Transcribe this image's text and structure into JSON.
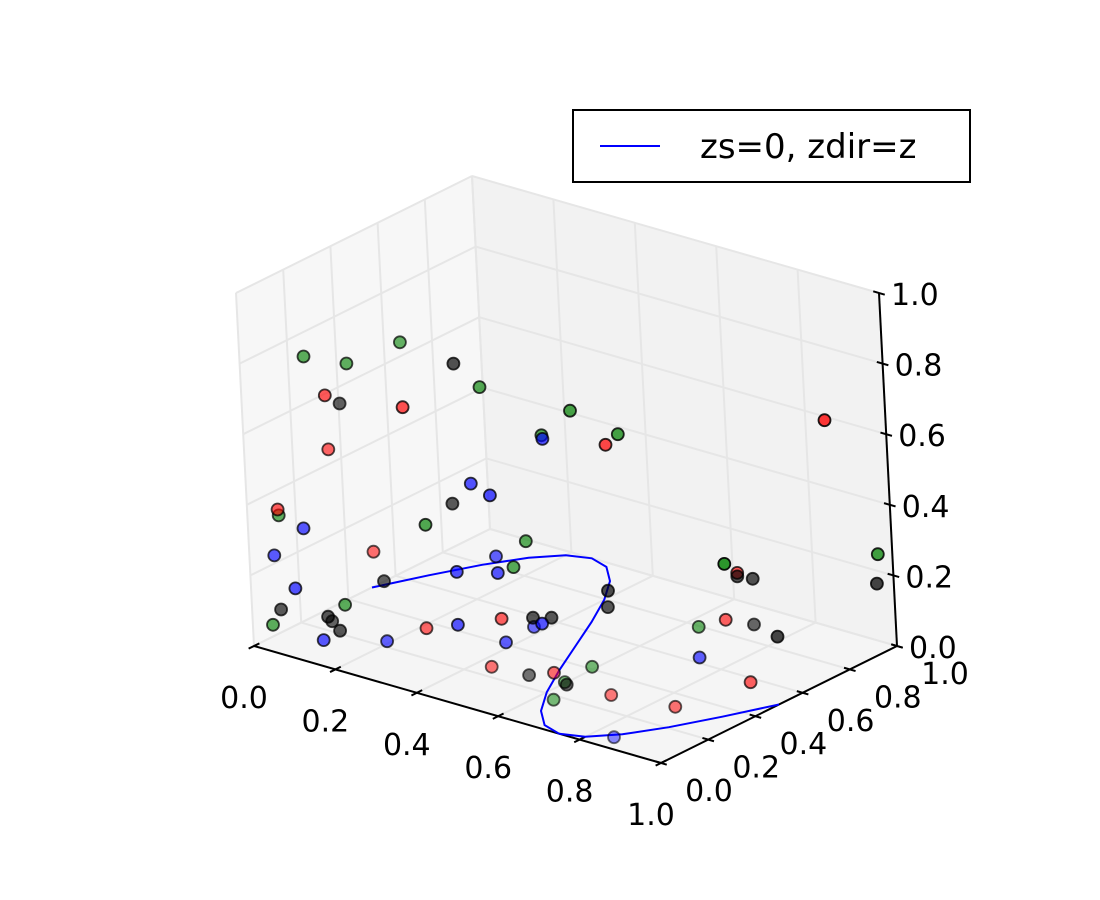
{
  "chart_data": {
    "type": "scatter",
    "projection": "3d",
    "title": "",
    "xlabel": "",
    "ylabel": "",
    "zlabel": "",
    "xlim": [
      0,
      1
    ],
    "ylim": [
      0,
      1
    ],
    "zlim": [
      0,
      1
    ],
    "x_ticks": [
      "0.0",
      "0.2",
      "0.4",
      "0.6",
      "0.8",
      "1.0"
    ],
    "y_ticks": [
      "0.0",
      "0.2",
      "0.4",
      "0.6",
      "0.8",
      "1.0"
    ],
    "z_ticks": [
      "0.0",
      "0.2",
      "0.4",
      "0.6",
      "0.8",
      "1.0"
    ],
    "grid": true,
    "legend": {
      "position": "top-right",
      "entries": [
        "zs=0, zdir=z"
      ]
    },
    "colors": {
      "line": "#0000ff",
      "red": "#ff0000",
      "green": "#008000",
      "blue": "#0000ff",
      "black": "#000000",
      "pane": "#f2f2f2",
      "grid": "#e6e6e6"
    },
    "line_series": {
      "label": "zs=0, zdir=z",
      "zs": 0,
      "zdir": "z",
      "x": [
        0.0,
        0.05,
        0.1,
        0.15,
        0.2,
        0.25,
        0.3,
        0.35,
        0.4,
        0.45,
        0.5,
        0.55,
        0.6,
        0.65,
        0.7,
        0.75,
        0.8,
        0.85,
        0.9,
        0.95,
        1.0
      ],
      "y": [
        0.5,
        0.654,
        0.794,
        0.905,
        0.976,
        1.0,
        0.976,
        0.905,
        0.794,
        0.654,
        0.5,
        0.346,
        0.206,
        0.095,
        0.024,
        0.0,
        0.024,
        0.095,
        0.206,
        0.346,
        0.5
      ]
    },
    "scatter_series": [
      {
        "color": "red",
        "points": [
          {
            "x": 0.04,
            "y": 0.06,
            "z": 0.38
          },
          {
            "x": 0.13,
            "y": 0.13,
            "z": 0.71
          },
          {
            "x": 0.18,
            "y": 0.05,
            "z": 0.6
          },
          {
            "x": 0.22,
            "y": 0.3,
            "z": 0.65
          },
          {
            "x": 0.31,
            "y": 0.0,
            "z": 0.37
          },
          {
            "x": 0.36,
            "y": 0.12,
            "z": 0.13
          },
          {
            "x": 0.47,
            "y": 0.25,
            "z": 0.15
          },
          {
            "x": 0.54,
            "y": 0.6,
            "z": 0.55
          },
          {
            "x": 0.56,
            "y": 0.05,
            "z": 0.11
          },
          {
            "x": 0.63,
            "y": 0.19,
            "z": 0.07
          },
          {
            "x": 0.8,
            "y": 0.14,
            "z": 0.08
          },
          {
            "x": 0.84,
            "y": 0.62,
            "z": 0.28
          },
          {
            "x": 0.86,
            "y": 0.98,
            "z": 0.6
          },
          {
            "x": 0.88,
            "y": 0.27,
            "z": 0.03
          },
          {
            "x": 0.89,
            "y": 0.48,
            "z": 0.21
          },
          {
            "x": 0.92,
            "y": 0.52,
            "z": 0.03
          }
        ]
      },
      {
        "color": "green",
        "points": [
          {
            "x": 0.02,
            "y": 0.05,
            "z": 0.05
          },
          {
            "x": 0.06,
            "y": 0.03,
            "z": 0.38
          },
          {
            "x": 0.1,
            "y": 0.1,
            "z": 0.82
          },
          {
            "x": 0.16,
            "y": 0.12,
            "z": 0.13
          },
          {
            "x": 0.2,
            "y": 0.11,
            "z": 0.83
          },
          {
            "x": 0.25,
            "y": 0.32,
            "z": 0.32
          },
          {
            "x": 0.33,
            "y": 0.12,
            "z": 0.93
          },
          {
            "x": 0.39,
            "y": 0.34,
            "z": 0.75
          },
          {
            "x": 0.44,
            "y": 0.36,
            "z": 0.25
          },
          {
            "x": 0.48,
            "y": 0.35,
            "z": 0.34
          },
          {
            "x": 0.48,
            "y": 0.56,
            "z": 0.64
          },
          {
            "x": 0.49,
            "y": 0.42,
            "z": 0.62
          },
          {
            "x": 0.56,
            "y": 0.62,
            "z": 0.58
          },
          {
            "x": 0.61,
            "y": 0.95,
            "z": 0.12
          },
          {
            "x": 0.68,
            "y": 0.1,
            "z": 0.04
          },
          {
            "x": 0.71,
            "y": 0.1,
            "z": 0.1
          },
          {
            "x": 0.75,
            "y": 0.15,
            "z": 0.14
          },
          {
            "x": 0.87,
            "y": 0.4,
            "z": 0.21
          },
          {
            "x": 1.0,
            "y": 0.94,
            "z": 0.28
          }
        ]
      },
      {
        "color": "blue",
        "points": [
          {
            "x": 0.02,
            "y": 0.15,
            "z": 0.12
          },
          {
            "x": 0.02,
            "y": 0.07,
            "z": 0.24
          },
          {
            "x": 0.06,
            "y": 0.13,
            "z": 0.31
          },
          {
            "x": 0.09,
            "y": 0.14,
            "z": 0.0
          },
          {
            "x": 0.26,
            "y": 0.12,
            "z": 0.06
          },
          {
            "x": 0.31,
            "y": 0.34,
            "z": 0.2
          },
          {
            "x": 0.33,
            "y": 0.3,
            "z": 0.07
          },
          {
            "x": 0.35,
            "y": 0.35,
            "z": 0.46
          },
          {
            "x": 0.36,
            "y": 0.41,
            "z": 0.41
          },
          {
            "x": 0.4,
            "y": 0.36,
            "z": 0.22
          },
          {
            "x": 0.46,
            "y": 0.28,
            "z": 0.07
          },
          {
            "x": 0.47,
            "y": 0.24,
            "z": 0.33
          },
          {
            "x": 0.48,
            "y": 0.4,
            "z": 0.09
          },
          {
            "x": 0.48,
            "y": 0.44,
            "z": 0.6
          },
          {
            "x": 0.58,
            "y": 0.2,
            "z": 0.18
          },
          {
            "x": 0.82,
            "y": 0.48,
            "z": 0.08
          },
          {
            "x": 0.88,
            "y": 0.01,
            "z": 0.03
          }
        ]
      },
      {
        "color": "black",
        "points": [
          {
            "x": 0.03,
            "y": 0.07,
            "z": 0.09
          },
          {
            "x": 0.08,
            "y": 0.18,
            "z": 0.05
          },
          {
            "x": 0.12,
            "y": 0.16,
            "z": 0.03
          },
          {
            "x": 0.18,
            "y": 0.03,
            "z": 0.12
          },
          {
            "x": 0.19,
            "y": 0.09,
            "z": 0.72
          },
          {
            "x": 0.26,
            "y": 0.12,
            "z": 0.23
          },
          {
            "x": 0.31,
            "y": 0.37,
            "z": 0.78
          },
          {
            "x": 0.35,
            "y": 0.27,
            "z": 0.43
          },
          {
            "x": 0.47,
            "y": 0.38,
            "z": 0.11
          },
          {
            "x": 0.51,
            "y": 0.39,
            "z": 0.12
          },
          {
            "x": 0.57,
            "y": 0.53,
            "z": 0.17
          },
          {
            "x": 0.61,
            "y": 0.12,
            "z": 0.08
          },
          {
            "x": 0.61,
            "y": 0.46,
            "z": 0.16
          },
          {
            "x": 0.63,
            "y": 0.24,
            "z": 0.02
          },
          {
            "x": 0.83,
            "y": 0.79,
            "z": 0.04
          },
          {
            "x": 0.84,
            "y": 0.62,
            "z": 0.27
          },
          {
            "x": 0.86,
            "y": 0.65,
            "z": 0.26
          },
          {
            "x": 0.96,
            "y": 0.48,
            "z": 0.22
          },
          {
            "x": 1.0,
            "y": 0.93,
            "z": 0.2
          }
        ]
      }
    ]
  }
}
